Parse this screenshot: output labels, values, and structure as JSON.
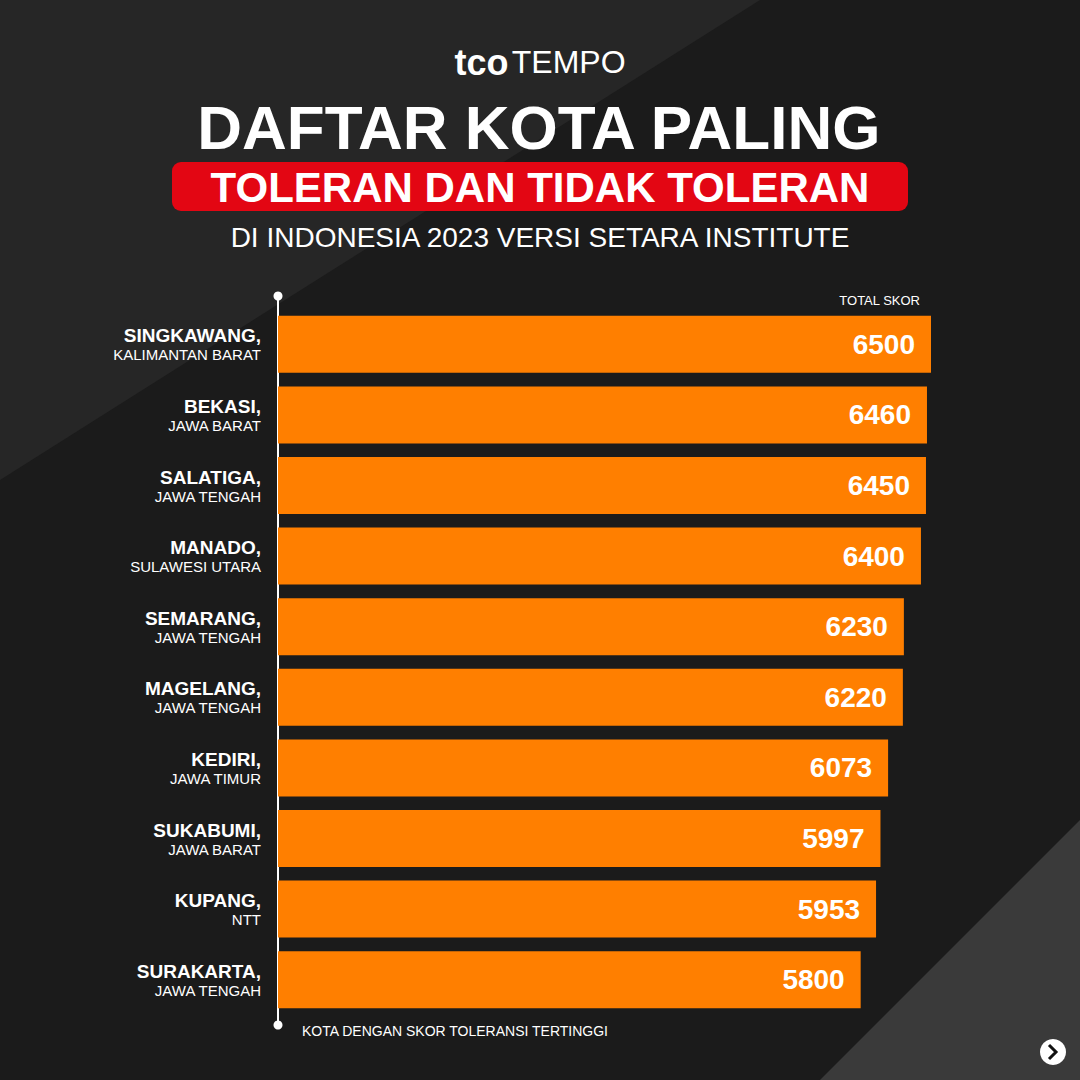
{
  "chart_data": {
    "type": "bar",
    "brand": "tco TEMPO",
    "title": "DAFTAR KOTA PALING",
    "title_highlight": "TOLERAN DAN TIDAK TOLERAN",
    "subtitle": "DI INDONESIA 2023 VERSI SETARA INSTITUTE",
    "xlabel": "TOTAL SKOR",
    "caption": "KOTA DENGAN SKOR TOLERANSI TERTINGGI",
    "orientation": "horizontal",
    "categories": [
      "SINGKAWANG,\nKALIMANTAN BARAT",
      "BEKASI,\nJAWA BARAT",
      "SALATIGA,\nJAWA TENGAH",
      "MANADO,\nSULAWESI UTARA",
      "SEMARANG,\nJAWA TENGAH",
      "MAGELANG,\nJAWA TENGAH",
      "KEDIRI,\nJAWA TIMUR",
      "SUKABUMI,\nJAWA BARAT",
      "KUPANG,\nNTT",
      "SURAKARTA,\nJAWA TENGAH"
    ],
    "values": [
      6500,
      6460,
      6450,
      6400,
      6230,
      6220,
      6073,
      5997,
      5953,
      5800
    ],
    "color": "#ff7f00",
    "xlim": [
      0,
      6500
    ],
    "grid": false,
    "data_labels": true,
    "tick_labels": false
  }
}
